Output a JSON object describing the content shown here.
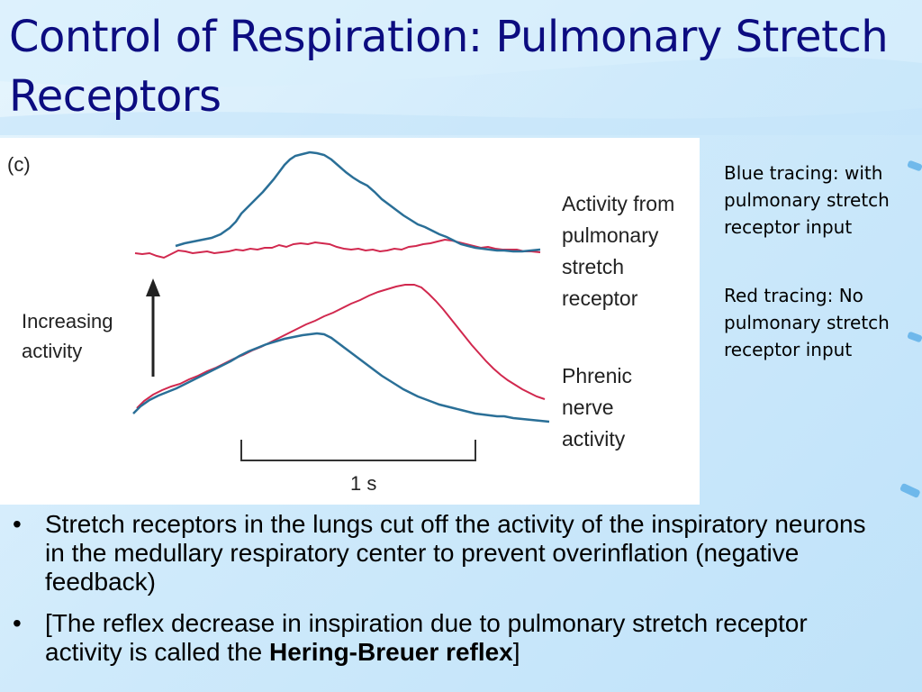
{
  "title": "Control of Respiration: Pulmonary Stretch Receptors",
  "figure": {
    "panel_label": "(c)",
    "y_axis_label_line1": "Increasing",
    "y_axis_label_line2": "activity",
    "top_trace_label_lines": [
      "Activity from",
      "pulmonary",
      "stretch",
      "receptor"
    ],
    "bottom_trace_label_lines": [
      "Phrenic",
      "nerve",
      "activity"
    ],
    "scale_bar_label": "1 s",
    "colors": {
      "blue_trace": "#2a6f97",
      "red_trace": "#d1284e"
    }
  },
  "notes": {
    "blue": "Blue tracing: with pulmonary stretch receptor input",
    "red": "Red tracing: No pulmonary stretch receptor input"
  },
  "bullets": [
    {
      "marker": "•",
      "text": "Stretch receptors in the lungs cut off the activity of the inspiratory neurons in the medullary respiratory center to prevent overinflation (negative feedback)"
    },
    {
      "marker": "•",
      "text_before": "[The reflex decrease in inspiration due to pulmonary stretch receptor activity is called the ",
      "bold": "Hering-Breuer reflex",
      "text_after": "]"
    }
  ]
}
